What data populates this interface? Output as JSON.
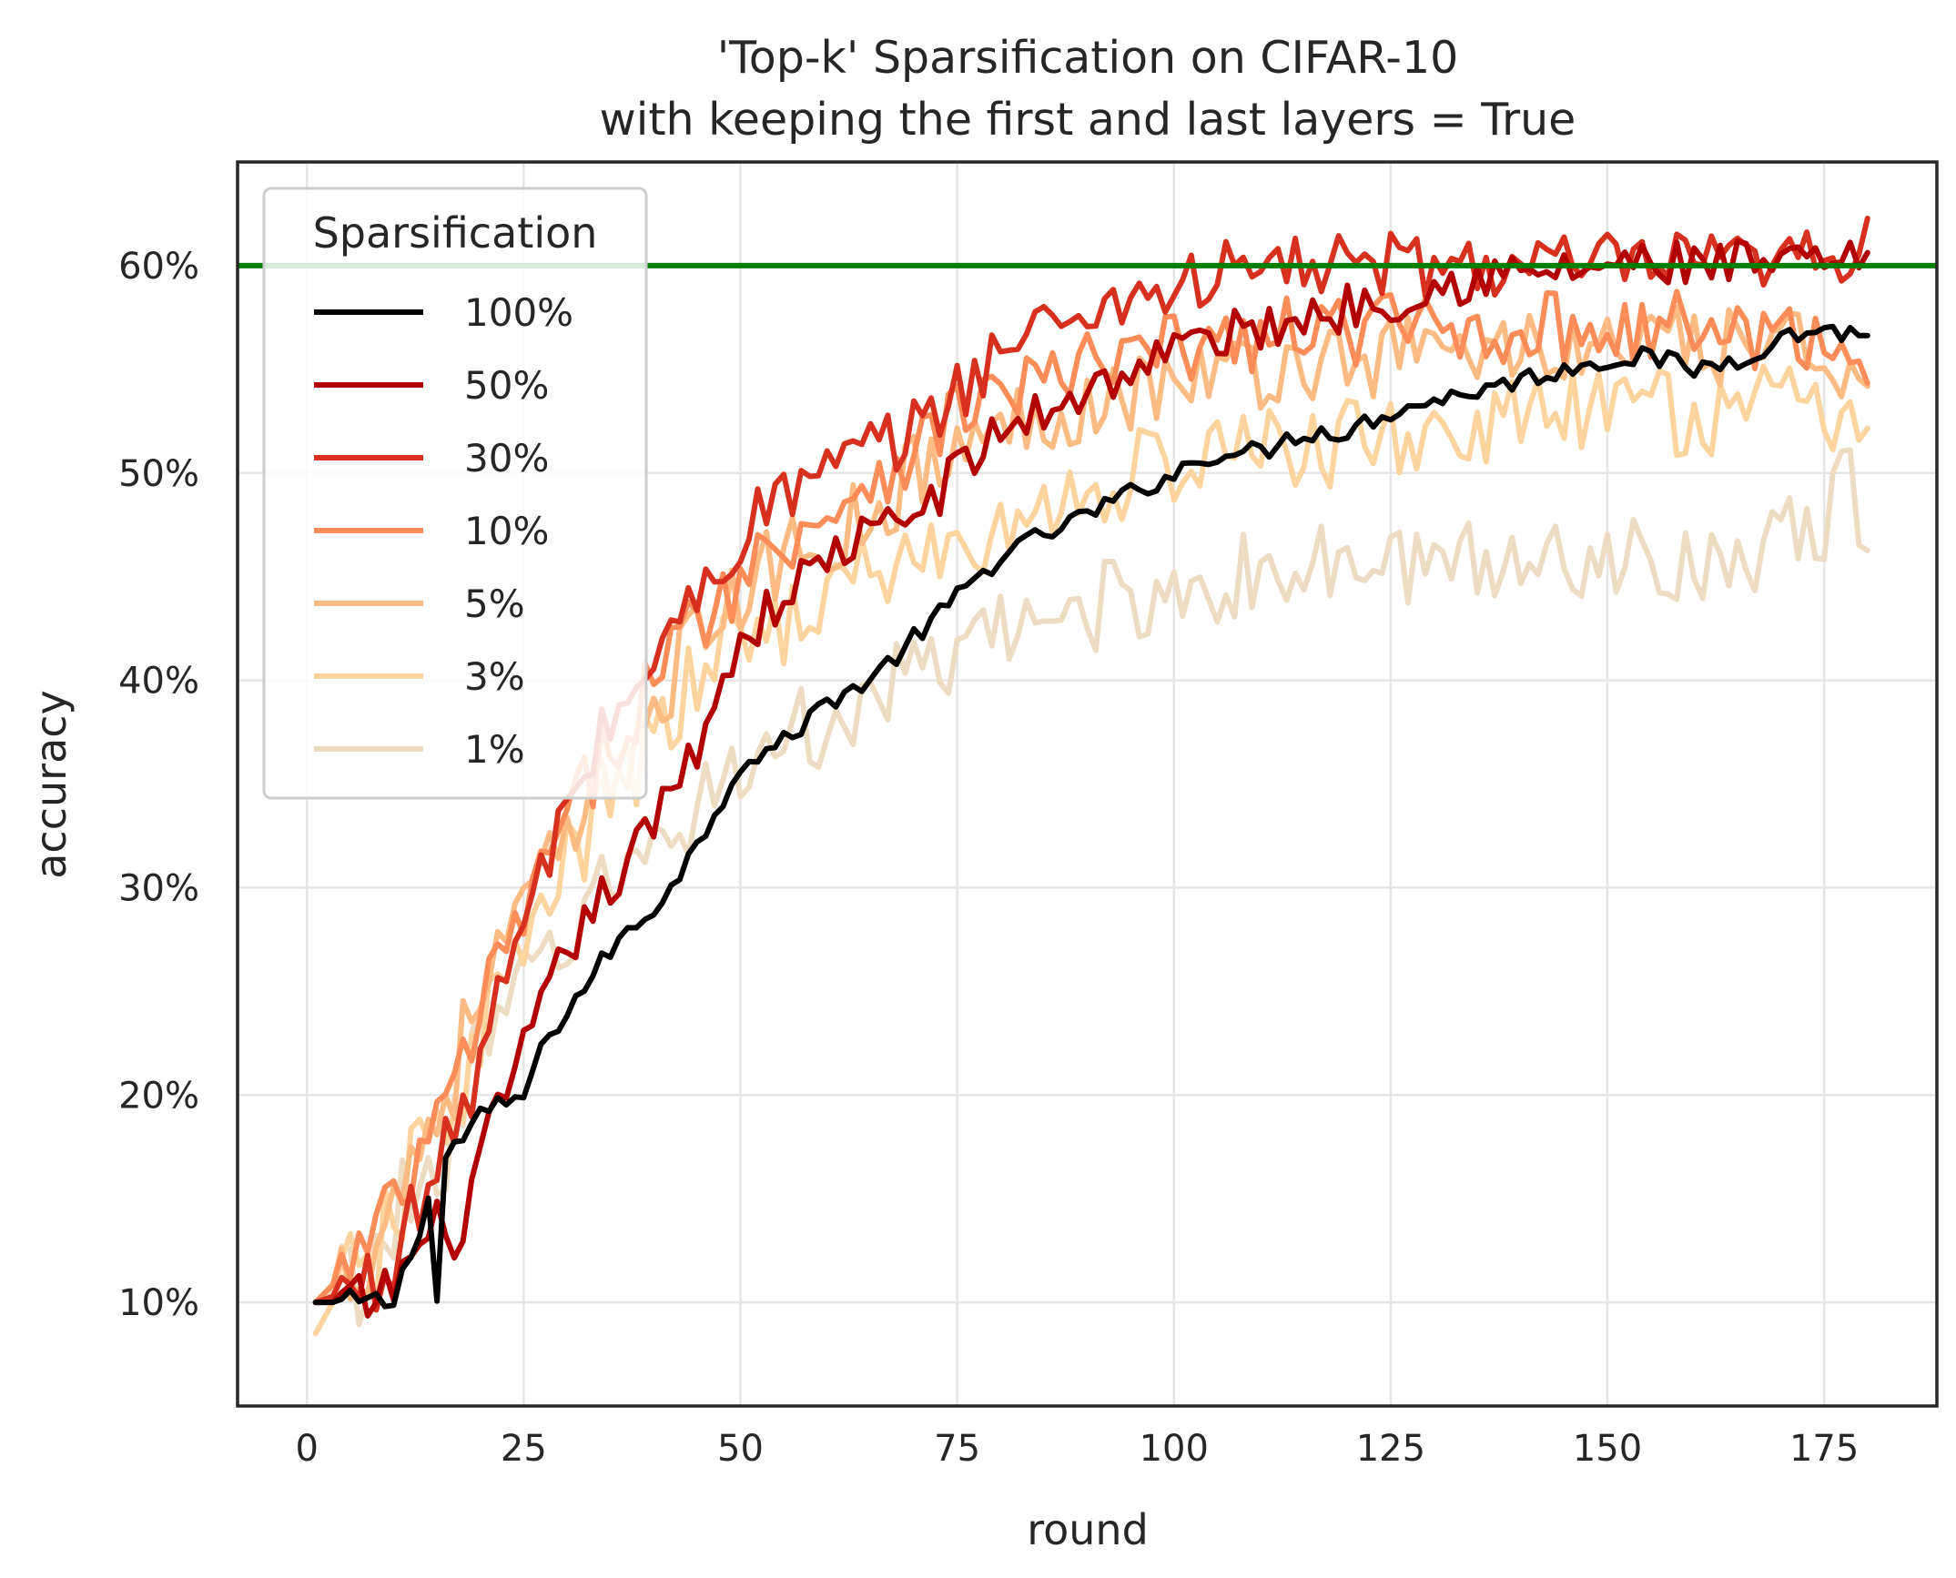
{
  "chart_data": {
    "type": "line",
    "title": [
      "'Top-k' Sparsification on CIFAR-10",
      "with keeping the first and last layers = True"
    ],
    "xlabel": "round",
    "ylabel": "accuracy",
    "xlim": [
      -8,
      188
    ],
    "ylim": [
      0.05,
      0.65
    ],
    "xticks": [
      0,
      25,
      50,
      75,
      100,
      125,
      150,
      175
    ],
    "xtick_labels": [
      "0",
      "25",
      "50",
      "75",
      "100",
      "125",
      "150",
      "175"
    ],
    "yticks": [
      0.1,
      0.2,
      0.3,
      0.4,
      0.5,
      0.6
    ],
    "ytick_labels": [
      "10%",
      "20%",
      "30%",
      "40%",
      "50%",
      "60%"
    ],
    "grid": true,
    "reference_line": {
      "y": 0.6,
      "color": "#007f00"
    },
    "legend": {
      "title": "Sparsification",
      "position": "upper-left"
    },
    "x_range": [
      1,
      180
    ],
    "series": [
      {
        "name": "100%",
        "color": "#000000",
        "keypoints": [
          [
            1,
            0.1
          ],
          [
            10,
            0.1
          ],
          [
            14,
            0.15
          ],
          [
            15,
            0.1
          ],
          [
            16,
            0.17
          ],
          [
            20,
            0.19
          ],
          [
            25,
            0.2
          ],
          [
            28,
            0.23
          ],
          [
            30,
            0.24
          ],
          [
            35,
            0.27
          ],
          [
            40,
            0.29
          ],
          [
            45,
            0.32
          ],
          [
            50,
            0.36
          ],
          [
            55,
            0.37
          ],
          [
            60,
            0.39
          ],
          [
            65,
            0.4
          ],
          [
            70,
            0.42
          ],
          [
            75,
            0.44
          ],
          [
            80,
            0.46
          ],
          [
            85,
            0.47
          ],
          [
            90,
            0.48
          ],
          [
            95,
            0.49
          ],
          [
            100,
            0.5
          ],
          [
            105,
            0.51
          ],
          [
            110,
            0.51
          ],
          [
            115,
            0.52
          ],
          [
            120,
            0.52
          ],
          [
            125,
            0.53
          ],
          [
            130,
            0.535
          ],
          [
            135,
            0.54
          ],
          [
            140,
            0.545
          ],
          [
            145,
            0.55
          ],
          [
            150,
            0.555
          ],
          [
            155,
            0.556
          ],
          [
            160,
            0.55
          ],
          [
            165,
            0.555
          ],
          [
            170,
            0.565
          ],
          [
            175,
            0.57
          ],
          [
            180,
            0.565
          ]
        ]
      },
      {
        "name": "50%",
        "color": "#b30000",
        "keypoints": [
          [
            1,
            0.1
          ],
          [
            8,
            0.1
          ],
          [
            12,
            0.12
          ],
          [
            16,
            0.14
          ],
          [
            18,
            0.13
          ],
          [
            20,
            0.17
          ],
          [
            25,
            0.22
          ],
          [
            30,
            0.27
          ],
          [
            35,
            0.3
          ],
          [
            40,
            0.33
          ],
          [
            45,
            0.37
          ],
          [
            50,
            0.42
          ],
          [
            55,
            0.44
          ],
          [
            60,
            0.46
          ],
          [
            65,
            0.47
          ],
          [
            70,
            0.48
          ],
          [
            75,
            0.5
          ],
          [
            80,
            0.52
          ],
          [
            85,
            0.53
          ],
          [
            90,
            0.54
          ],
          [
            95,
            0.55
          ],
          [
            100,
            0.56
          ],
          [
            105,
            0.565
          ],
          [
            110,
            0.57
          ],
          [
            115,
            0.575
          ],
          [
            120,
            0.58
          ],
          [
            125,
            0.585
          ],
          [
            130,
            0.59
          ],
          [
            135,
            0.595
          ],
          [
            140,
            0.595
          ],
          [
            150,
            0.6
          ],
          [
            160,
            0.6
          ],
          [
            170,
            0.6
          ],
          [
            180,
            0.6
          ]
        ]
      },
      {
        "name": "30%",
        "color": "#d7301f",
        "keypoints": [
          [
            1,
            0.1
          ],
          [
            8,
            0.11
          ],
          [
            12,
            0.14
          ],
          [
            16,
            0.17
          ],
          [
            20,
            0.22
          ],
          [
            25,
            0.28
          ],
          [
            30,
            0.34
          ],
          [
            35,
            0.38
          ],
          [
            40,
            0.41
          ],
          [
            45,
            0.44
          ],
          [
            50,
            0.47
          ],
          [
            55,
            0.49
          ],
          [
            60,
            0.5
          ],
          [
            65,
            0.51
          ],
          [
            70,
            0.52
          ],
          [
            75,
            0.54
          ],
          [
            80,
            0.56
          ],
          [
            85,
            0.57
          ],
          [
            90,
            0.58
          ],
          [
            95,
            0.585
          ],
          [
            100,
            0.59
          ],
          [
            105,
            0.595
          ],
          [
            110,
            0.6
          ],
          [
            115,
            0.6
          ],
          [
            120,
            0.6
          ],
          [
            130,
            0.6
          ],
          [
            140,
            0.6
          ],
          [
            150,
            0.6
          ],
          [
            160,
            0.6
          ],
          [
            170,
            0.6
          ],
          [
            180,
            0.61
          ]
        ]
      },
      {
        "name": "10%",
        "color": "#fc8d59",
        "keypoints": [
          [
            1,
            0.1
          ],
          [
            8,
            0.13
          ],
          [
            12,
            0.16
          ],
          [
            16,
            0.19
          ],
          [
            20,
            0.24
          ],
          [
            25,
            0.29
          ],
          [
            30,
            0.33
          ],
          [
            35,
            0.37
          ],
          [
            40,
            0.4
          ],
          [
            45,
            0.43
          ],
          [
            50,
            0.45
          ],
          [
            55,
            0.47
          ],
          [
            60,
            0.48
          ],
          [
            65,
            0.5
          ],
          [
            70,
            0.51
          ],
          [
            75,
            0.53
          ],
          [
            80,
            0.54
          ],
          [
            85,
            0.545
          ],
          [
            90,
            0.55
          ],
          [
            95,
            0.555
          ],
          [
            100,
            0.56
          ],
          [
            110,
            0.565
          ],
          [
            120,
            0.57
          ],
          [
            130,
            0.57
          ],
          [
            140,
            0.57
          ],
          [
            150,
            0.57
          ],
          [
            160,
            0.57
          ],
          [
            170,
            0.565
          ],
          [
            180,
            0.56
          ]
        ]
      },
      {
        "name": "5%",
        "color": "#fdbb84",
        "keypoints": [
          [
            1,
            0.1
          ],
          [
            8,
            0.13
          ],
          [
            12,
            0.17
          ],
          [
            16,
            0.2
          ],
          [
            20,
            0.25
          ],
          [
            25,
            0.29
          ],
          [
            30,
            0.32
          ],
          [
            35,
            0.35
          ],
          [
            40,
            0.39
          ],
          [
            45,
            0.42
          ],
          [
            50,
            0.44
          ],
          [
            55,
            0.46
          ],
          [
            60,
            0.47
          ],
          [
            65,
            0.48
          ],
          [
            70,
            0.5
          ],
          [
            75,
            0.51
          ],
          [
            80,
            0.52
          ],
          [
            85,
            0.53
          ],
          [
            90,
            0.535
          ],
          [
            95,
            0.54
          ],
          [
            100,
            0.545
          ],
          [
            110,
            0.55
          ],
          [
            120,
            0.555
          ],
          [
            130,
            0.56
          ],
          [
            140,
            0.56
          ],
          [
            150,
            0.56
          ],
          [
            160,
            0.56
          ],
          [
            170,
            0.56
          ],
          [
            180,
            0.555
          ]
        ]
      },
      {
        "name": "3%",
        "color": "#fdd49e",
        "keypoints": [
          [
            1,
            0.085
          ],
          [
            3,
            0.1
          ],
          [
            8,
            0.12
          ],
          [
            12,
            0.16
          ],
          [
            16,
            0.19
          ],
          [
            20,
            0.23
          ],
          [
            25,
            0.27
          ],
          [
            30,
            0.31
          ],
          [
            35,
            0.34
          ],
          [
            40,
            0.37
          ],
          [
            45,
            0.4
          ],
          [
            50,
            0.42
          ],
          [
            55,
            0.43
          ],
          [
            60,
            0.44
          ],
          [
            65,
            0.45
          ],
          [
            70,
            0.46
          ],
          [
            75,
            0.46
          ],
          [
            80,
            0.47
          ],
          [
            85,
            0.48
          ],
          [
            90,
            0.49
          ],
          [
            95,
            0.5
          ],
          [
            100,
            0.505
          ],
          [
            110,
            0.51
          ],
          [
            120,
            0.515
          ],
          [
            130,
            0.52
          ],
          [
            140,
            0.525
          ],
          [
            150,
            0.53
          ],
          [
            160,
            0.53
          ],
          [
            170,
            0.53
          ],
          [
            180,
            0.53
          ]
        ]
      },
      {
        "name": "1%",
        "color": "#eddbc2",
        "keypoints": [
          [
            1,
            0.1
          ],
          [
            8,
            0.12
          ],
          [
            12,
            0.15
          ],
          [
            16,
            0.18
          ],
          [
            20,
            0.22
          ],
          [
            25,
            0.25
          ],
          [
            30,
            0.28
          ],
          [
            35,
            0.3
          ],
          [
            40,
            0.32
          ],
          [
            45,
            0.34
          ],
          [
            50,
            0.36
          ],
          [
            55,
            0.37
          ],
          [
            60,
            0.38
          ],
          [
            65,
            0.39
          ],
          [
            70,
            0.4
          ],
          [
            75,
            0.41
          ],
          [
            80,
            0.42
          ],
          [
            85,
            0.43
          ],
          [
            90,
            0.435
          ],
          [
            95,
            0.44
          ],
          [
            100,
            0.445
          ],
          [
            110,
            0.45
          ],
          [
            120,
            0.455
          ],
          [
            130,
            0.455
          ],
          [
            140,
            0.46
          ],
          [
            150,
            0.46
          ],
          [
            160,
            0.46
          ],
          [
            170,
            0.465
          ],
          [
            175,
            0.47
          ],
          [
            178,
            0.5
          ],
          [
            180,
            0.465
          ]
        ]
      }
    ]
  }
}
